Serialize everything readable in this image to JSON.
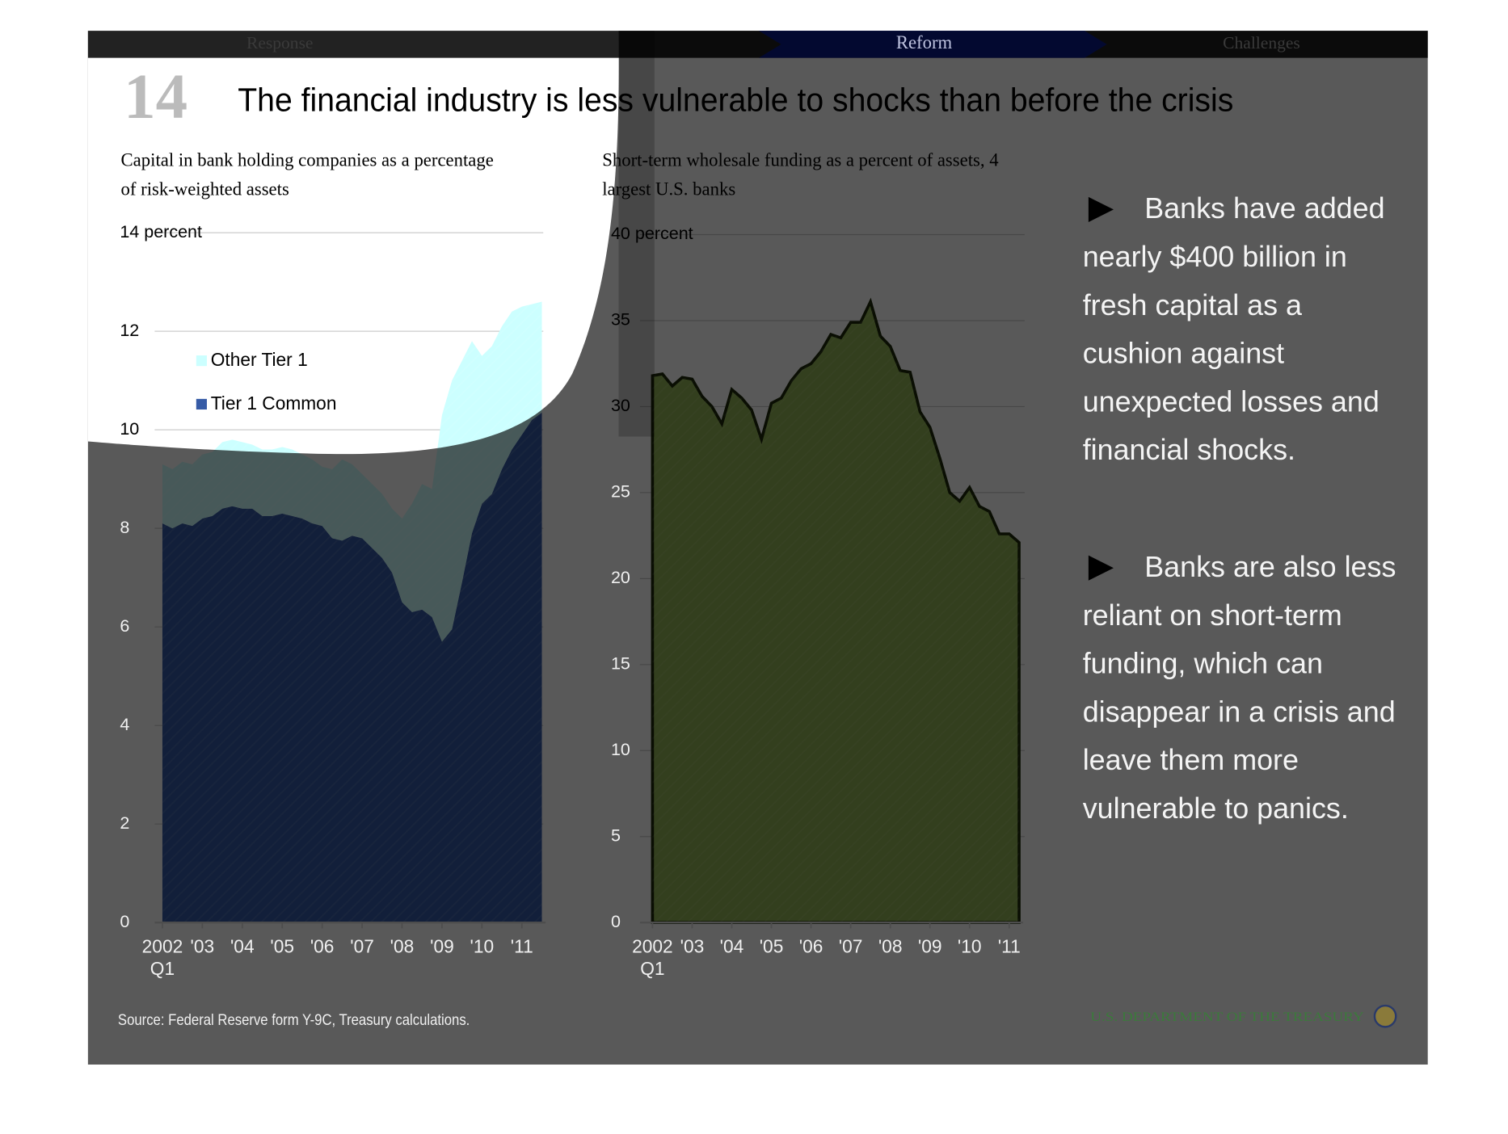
{
  "nav": [
    "Response",
    "Reform",
    "Challenges"
  ],
  "slide_number": "14",
  "title": "The financial industry is less vulnerable to shocks than before the crisis",
  "bullets": [
    "Banks have added nearly  $400 billion in fresh capital as a cushion against unexpected losses and financial shocks.",
    "Banks are also less reliant on short-term funding, which can disappear in a crisis and leave them more vulnerable to panics."
  ],
  "source": "Source: Federal Reserve form Y-9C, Treasury calculations.",
  "footer": "U.S. DEPARTMENT OF THE TREASURY",
  "chart_data": [
    {
      "type": "stacked_area",
      "title": "Capital in bank holding companies as a percentage of risk-weighted assets",
      "categories": [
        "2002 Q1",
        null,
        null,
        null,
        "'03",
        null,
        null,
        null,
        "'04",
        null,
        null,
        null,
        "'05",
        null,
        null,
        null,
        "'06",
        null,
        null,
        null,
        "'07",
        null,
        null,
        null,
        "'08",
        null,
        null,
        null,
        "'09",
        null,
        null,
        null,
        "'10",
        null,
        null,
        null,
        "'11",
        null,
        null
      ],
      "series": [
        {
          "name": "Tier 1 Common",
          "color": "#365ba6",
          "values": [
            8.1,
            8.0,
            8.1,
            8.05,
            8.2,
            8.25,
            8.4,
            8.45,
            8.4,
            8.4,
            8.25,
            8.25,
            8.3,
            8.25,
            8.2,
            8.1,
            8.05,
            7.8,
            7.75,
            7.85,
            7.8,
            7.6,
            7.4,
            7.1,
            6.5,
            6.3,
            6.35,
            6.2,
            5.7,
            5.95,
            6.9,
            7.9,
            8.5,
            8.7,
            9.2,
            9.6,
            9.9,
            10.2,
            10.35
          ]
        },
        {
          "name": "Other Tier 1",
          "color": "#ccffff",
          "values": [
            1.2,
            1.2,
            1.25,
            1.25,
            1.3,
            1.3,
            1.35,
            1.35,
            1.35,
            1.3,
            1.35,
            1.35,
            1.35,
            1.35,
            1.3,
            1.3,
            1.2,
            1.4,
            1.65,
            1.45,
            1.3,
            1.3,
            1.3,
            1.3,
            1.7,
            2.2,
            2.55,
            2.6,
            4.6,
            5.05,
            4.5,
            3.9,
            3.0,
            3.0,
            2.9,
            2.8,
            2.6,
            2.35,
            2.25
          ]
        }
      ],
      "ylim": [
        0,
        14
      ],
      "yticks": [
        0,
        2,
        4,
        6,
        8,
        10,
        12,
        {
          "value": 14,
          "label": "14 percent"
        }
      ],
      "grid": true,
      "legend": "upper left"
    },
    {
      "type": "area",
      "title": "Short-term wholesale funding as a percent of assets, 4 largest U.S. banks",
      "categories": [
        "2002 Q1",
        null,
        null,
        null,
        "'03",
        null,
        null,
        null,
        "'04",
        null,
        null,
        null,
        "'05",
        null,
        null,
        null,
        "'06",
        null,
        null,
        null,
        "'07",
        null,
        null,
        null,
        "'08",
        null,
        null,
        null,
        "'09",
        null,
        null,
        null,
        "'10",
        null,
        null,
        null,
        "'11",
        null
      ],
      "color": "#92b456",
      "values": [
        31.8,
        31.9,
        31.2,
        31.7,
        31.6,
        30.6,
        30.0,
        29.0,
        31.0,
        30.5,
        29.8,
        28.1,
        30.2,
        30.5,
        31.5,
        32.2,
        32.5,
        33.2,
        34.2,
        34.0,
        34.9,
        34.9,
        36.1,
        34.1,
        33.5,
        32.1,
        32.0,
        29.7,
        28.8,
        27.0,
        25.0,
        24.5,
        25.3,
        24.2,
        23.9,
        22.6,
        22.6,
        22.1
      ],
      "ylim": [
        0,
        40
      ],
      "yticks": [
        0,
        5,
        10,
        15,
        20,
        25,
        30,
        35,
        {
          "value": 40,
          "label": "40 percent"
        }
      ],
      "grid": true
    }
  ]
}
